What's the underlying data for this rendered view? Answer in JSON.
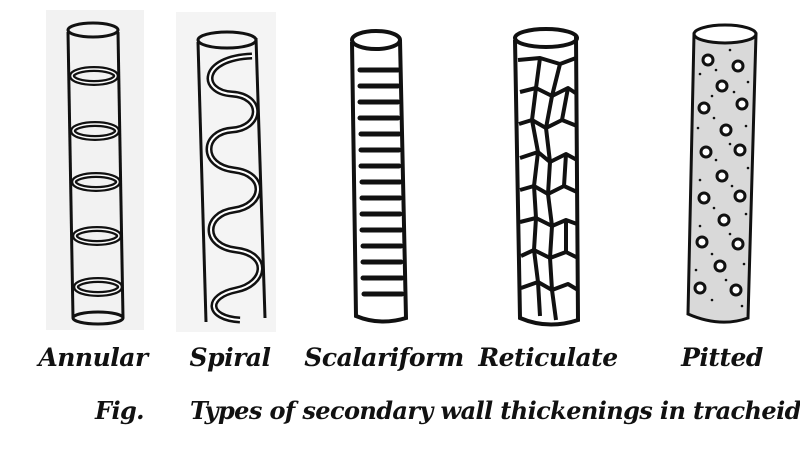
{
  "labels": {
    "annular": "Annular",
    "spiral": "Spiral",
    "scalariform": "Scalariform",
    "reticulate": "Reticulate",
    "pitted": "Pitted"
  },
  "caption": {
    "prefix": "Fig.",
    "text": "Types of secondary wall thickenings in tracheids"
  },
  "colors": {
    "ink": "#111111",
    "panel_shade": "#f1f1f1",
    "pitted_fill": "#d9d9d9"
  }
}
